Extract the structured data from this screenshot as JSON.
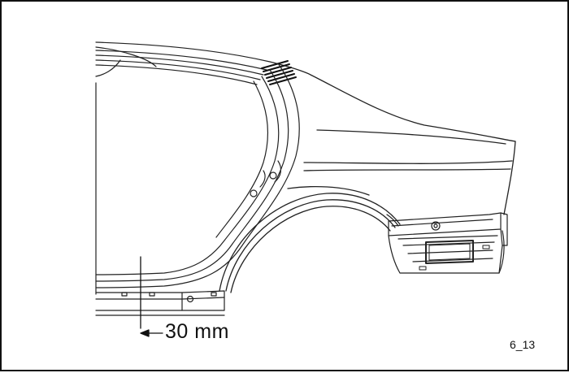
{
  "figure": {
    "dimension_label": "30 mm",
    "figure_id": "6_13"
  }
}
